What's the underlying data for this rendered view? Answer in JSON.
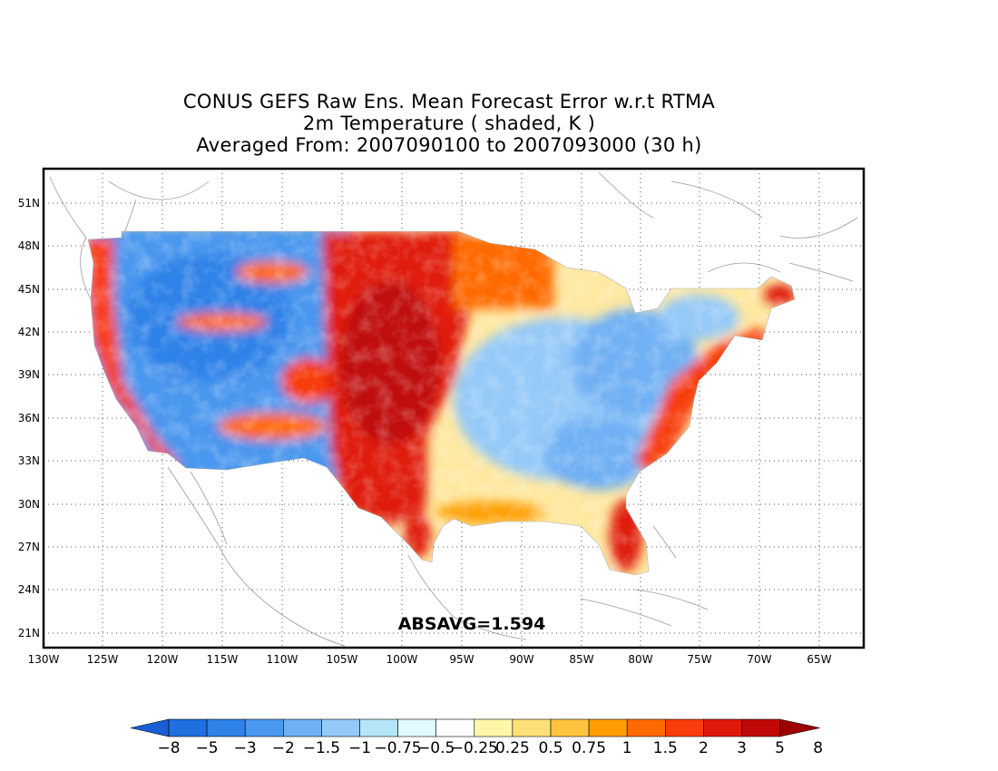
{
  "title": {
    "line1": "CONUS GEFS Raw Ens. Mean Forecast Error w.r.t RTMA",
    "line2": "2m Temperature ( shaded, K )",
    "line3": "Averaged From: 2007090100 to 2007093000 (30 h)"
  },
  "annotation": "ABSAVG=1.594",
  "axes": {
    "lat_labels": [
      "51N",
      "48N",
      "45N",
      "42N",
      "39N",
      "36N",
      "33N",
      "30N",
      "27N",
      "24N",
      "21N"
    ],
    "lon_labels": [
      "130W",
      "125W",
      "120W",
      "115W",
      "110W",
      "105W",
      "100W",
      "95W",
      "90W",
      "85W",
      "80W",
      "75W",
      "70W",
      "65W"
    ]
  },
  "colorbar": {
    "labels": [
      "-8",
      "-5",
      "-3",
      "-2",
      "-1.5",
      "-1",
      "-0.75",
      "-0.5",
      "-0.25",
      "0.25",
      "0.5",
      "0.75",
      "1",
      "1.5",
      "2",
      "3",
      "5",
      "8"
    ],
    "colors": [
      "#1a5ed6",
      "#1f6fe0",
      "#2f82e8",
      "#4a97ef",
      "#6fb0f4",
      "#94c9f8",
      "#b4e6f8",
      "#e0fafe",
      "#ffffff",
      "#fff7a8",
      "#ffe17a",
      "#ffc33d",
      "#ff9d00",
      "#ff6a00",
      "#f83c0a",
      "#e01a0a",
      "#c00808",
      "#9e0000"
    ]
  },
  "map": {
    "grid": true,
    "shading": "2m temperature forecast error (K)"
  }
}
